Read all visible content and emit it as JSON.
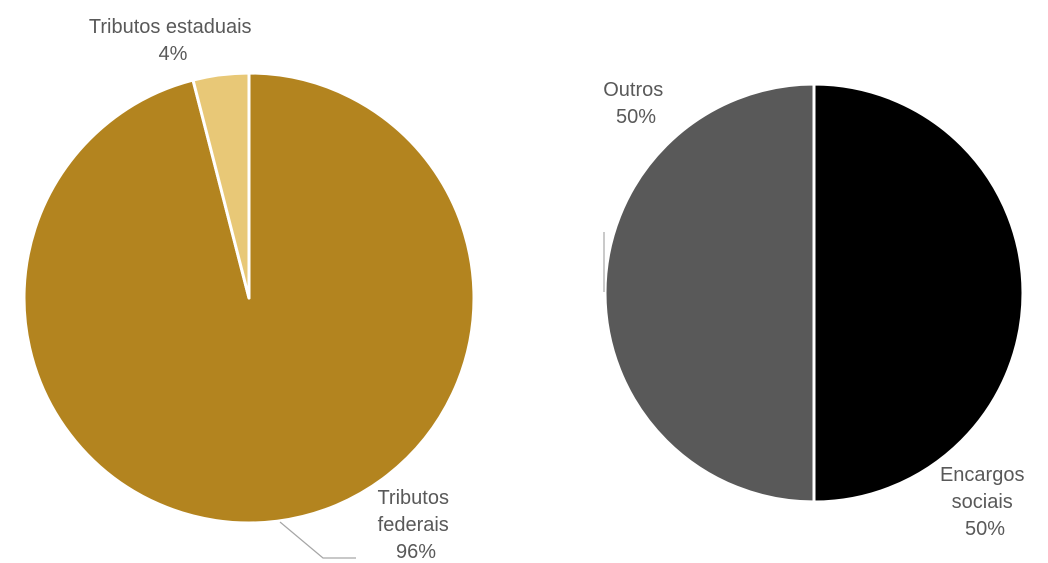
{
  "chart_data": [
    {
      "type": "pie",
      "colors": [
        "#B3841F",
        "#E8C877"
      ],
      "slices": [
        {
          "label_lines": [
            "Tributos",
            "federais"
          ],
          "value_label": "96%",
          "value": 96,
          "color": "#B3841F"
        },
        {
          "label_lines": [
            "Tributos estaduais"
          ],
          "value_label": "4%",
          "value": 4,
          "color": "#E8C877"
        }
      ]
    },
    {
      "type": "pie",
      "colors": [
        "#000000",
        "#595959"
      ],
      "slices": [
        {
          "label_lines": [
            "Encargos",
            "sociais"
          ],
          "value_label": "50%",
          "value": 50,
          "color": "#000000"
        },
        {
          "label_lines": [
            "Outros"
          ],
          "value_label": "50%",
          "value": 50,
          "color": "#595959"
        }
      ]
    }
  ]
}
